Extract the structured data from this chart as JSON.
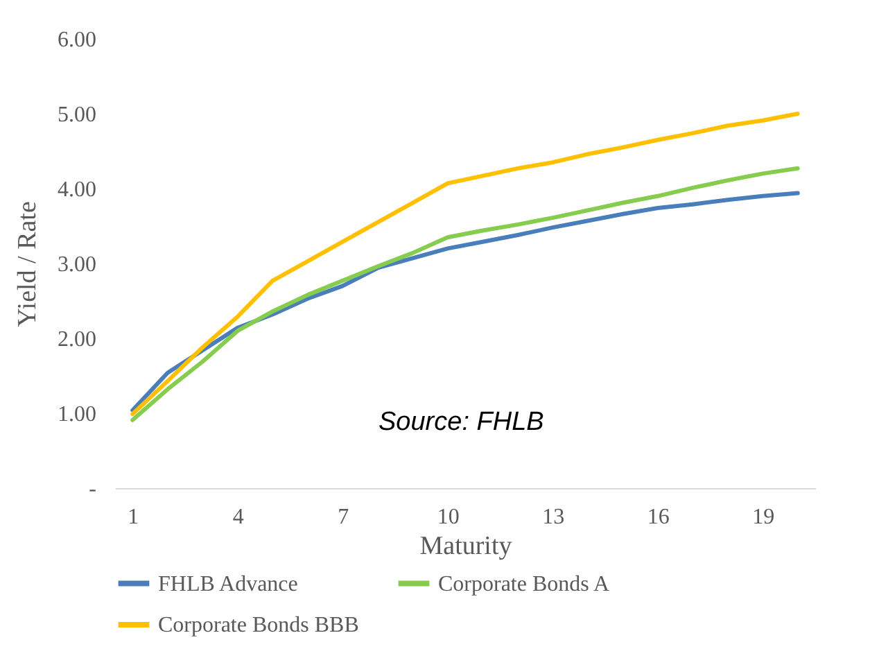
{
  "chart_data": {
    "type": "line",
    "xlabel": "Maturity",
    "ylabel": "Yield / Rate",
    "categories": [
      "1",
      null,
      null,
      "4",
      null,
      null,
      "7",
      null,
      null,
      "10",
      null,
      null,
      "13",
      null,
      null,
      "16",
      null,
      null,
      "19",
      null
    ],
    "series": [
      {
        "name": "FHLB Advance",
        "color": "#4a7ebb",
        "values": [
          1.04,
          1.54,
          1.84,
          2.14,
          2.32,
          2.53,
          2.7,
          2.94,
          3.07,
          3.2,
          3.29,
          3.38,
          3.48,
          3.57,
          3.66,
          3.74,
          3.79,
          3.85,
          3.9,
          3.94
        ]
      },
      {
        "name": "Corporate Bonds A",
        "color": "#86cc4e",
        "values": [
          0.91,
          1.32,
          1.69,
          2.1,
          2.36,
          2.58,
          2.77,
          2.96,
          3.14,
          3.35,
          3.44,
          3.52,
          3.61,
          3.71,
          3.81,
          3.9,
          4.01,
          4.11,
          4.2,
          4.27
        ]
      },
      {
        "name": "Corporate Bonds BBB",
        "color": "#ffc000",
        "values": [
          0.99,
          1.43,
          1.88,
          2.29,
          2.77,
          3.03,
          3.29,
          3.55,
          3.81,
          4.07,
          4.17,
          4.27,
          4.35,
          4.46,
          4.55,
          4.65,
          4.74,
          4.84,
          4.91,
          5.0
        ]
      }
    ],
    "ylim": [
      0,
      6
    ],
    "yticks": [
      {
        "value": 0,
        "label": "-"
      },
      {
        "value": 1,
        "label": "1.00"
      },
      {
        "value": 2,
        "label": "2.00"
      },
      {
        "value": 3,
        "label": "3.00"
      },
      {
        "value": 4,
        "label": "4.00"
      },
      {
        "value": 5,
        "label": "5.00"
      },
      {
        "value": 6,
        "label": "6.00"
      }
    ],
    "grid": false,
    "legend": "bottom",
    "marker": "none",
    "line_style": "solid",
    "annotations": [
      "Source: FHLB"
    ]
  }
}
